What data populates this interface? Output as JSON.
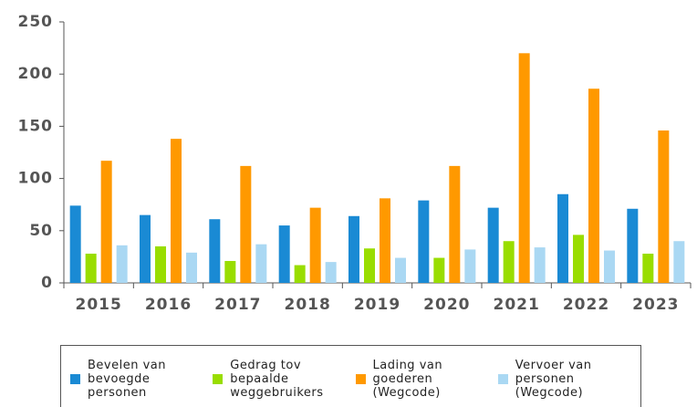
{
  "chart_data": {
    "type": "bar",
    "categories": [
      "2015",
      "2016",
      "2017",
      "2018",
      "2019",
      "2020",
      "2021",
      "2022",
      "2023"
    ],
    "series": [
      {
        "name": "Bevelen van bevoegde personen",
        "color": "#1a8ad4",
        "values": [
          74,
          65,
          61,
          55,
          64,
          79,
          72,
          85,
          71
        ]
      },
      {
        "name": "Gedrag tov bepaalde weggebruikers",
        "color": "#99dd00",
        "values": [
          28,
          35,
          21,
          17,
          33,
          24,
          40,
          46,
          28
        ]
      },
      {
        "name": "Lading van goederen (Wegcode)",
        "color": "#ff9900",
        "values": [
          117,
          138,
          112,
          72,
          81,
          112,
          220,
          186,
          146
        ]
      },
      {
        "name": "Vervoer van personen (Wegcode)",
        "color": "#aad8f3",
        "values": [
          36,
          29,
          37,
          20,
          24,
          32,
          34,
          31,
          40
        ]
      }
    ],
    "ylim": [
      0,
      250
    ],
    "yticks": [
      0,
      50,
      100,
      150,
      200,
      250
    ],
    "grid": false,
    "legend": "bottom"
  }
}
